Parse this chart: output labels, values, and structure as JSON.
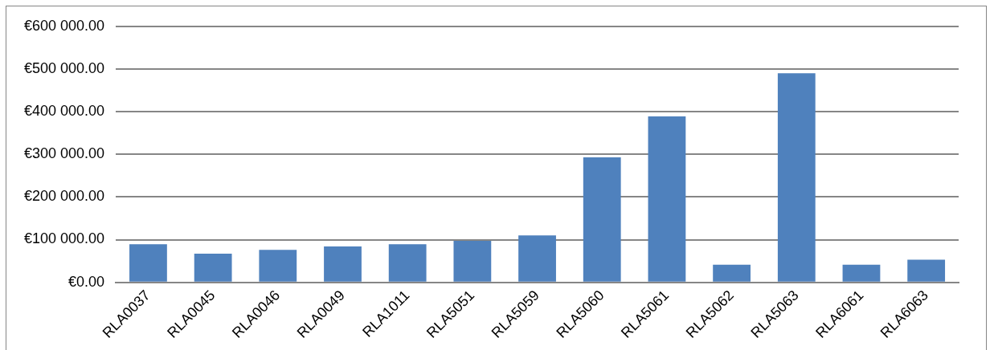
{
  "chart_data": {
    "type": "bar",
    "categories": [
      "RLA0037",
      "RLA0045",
      "RLA0046",
      "RLA0049",
      "RLA1011",
      "RLA5051",
      "RLA5059",
      "RLA5060",
      "RLA5061",
      "RLA5062",
      "RLA5063",
      "RLA6061",
      "RLA6063"
    ],
    "values": [
      89000,
      67000,
      76000,
      84000,
      89000,
      97000,
      110000,
      293000,
      389000,
      41000,
      490000,
      41000,
      53000
    ],
    "color": "#4f81bd",
    "ylim": [
      0,
      600000
    ],
    "yticks": [
      {
        "value": 0,
        "label": "€0.00"
      },
      {
        "value": 100000,
        "label": "€100 000.00"
      },
      {
        "value": 200000,
        "label": "€200 000.00"
      },
      {
        "value": 300000,
        "label": "€300 000.00"
      },
      {
        "value": 400000,
        "label": "€400 000.00"
      },
      {
        "value": 500000,
        "label": "€500 000.00"
      },
      {
        "value": 600000,
        "label": "€600 000.00"
      }
    ],
    "grid": "y",
    "legend": false
  }
}
